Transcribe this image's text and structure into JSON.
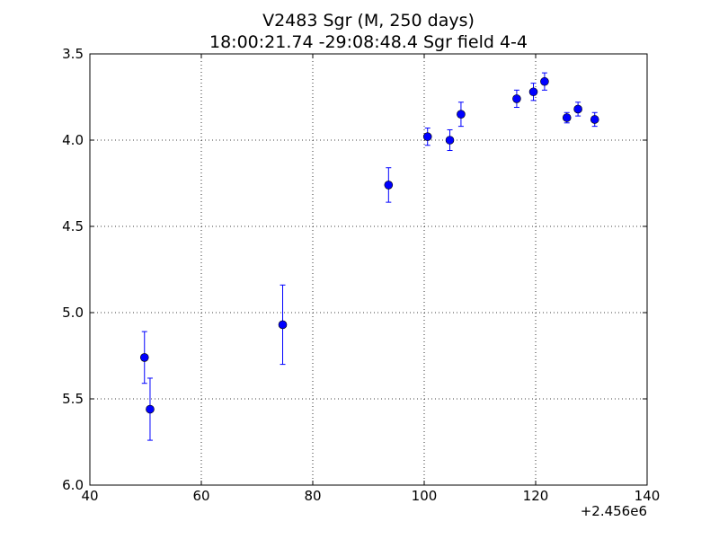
{
  "chart_data": {
    "type": "scatter",
    "title": "V2483 Sgr  (M, 250 days)",
    "subtitle": "18:00:21.74 -29:08:48.4 Sgr field 4-4",
    "xlabel": "",
    "ylabel": "",
    "x_offset_label": "+2.456e6",
    "xlim": [
      40,
      140
    ],
    "ylim": [
      6.0,
      3.5
    ],
    "y_inverted": true,
    "x_ticks": [
      40,
      60,
      80,
      100,
      120,
      140
    ],
    "x_tick_labels": [
      "40",
      "60",
      "80",
      "100",
      "120",
      "140"
    ],
    "y_ticks": [
      3.5,
      4.0,
      4.5,
      5.0,
      5.5,
      6.0
    ],
    "y_tick_labels": [
      "3.5",
      "4.0",
      "4.5",
      "5.0",
      "5.5",
      "6.0"
    ],
    "grid": true,
    "marker_color": "#0000ff",
    "points": [
      {
        "x": 49.8,
        "y": 5.26,
        "err": 0.15
      },
      {
        "x": 50.8,
        "y": 5.56,
        "err": 0.18
      },
      {
        "x": 74.6,
        "y": 5.07,
        "err": 0.23
      },
      {
        "x": 93.6,
        "y": 4.26,
        "err": 0.1
      },
      {
        "x": 100.6,
        "y": 3.98,
        "err": 0.05
      },
      {
        "x": 104.6,
        "y": 4.0,
        "err": 0.06
      },
      {
        "x": 106.6,
        "y": 3.85,
        "err": 0.07
      },
      {
        "x": 116.6,
        "y": 3.76,
        "err": 0.05
      },
      {
        "x": 119.6,
        "y": 3.72,
        "err": 0.05
      },
      {
        "x": 121.6,
        "y": 3.66,
        "err": 0.05
      },
      {
        "x": 125.6,
        "y": 3.87,
        "err": 0.03
      },
      {
        "x": 127.6,
        "y": 3.82,
        "err": 0.04
      },
      {
        "x": 130.6,
        "y": 3.88,
        "err": 0.04
      }
    ]
  }
}
